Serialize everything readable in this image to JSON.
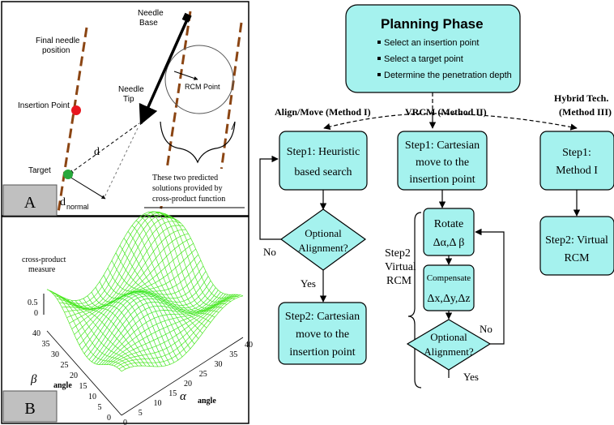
{
  "panel_a": {
    "letter": "A",
    "final_needle_1": "Final needle",
    "final_needle_2": "position",
    "needle_base_1": "Needle",
    "needle_base_2": "Base",
    "needle_tip_1": "Needle",
    "needle_tip_2": "Tip",
    "rcm_point": "RCM Point",
    "insertion_point": "Insertion Point",
    "target": "Target",
    "d_upper": "d",
    "d_lower": "d",
    "normal": "normal",
    "note_1": "These two predicted",
    "note_2": "solutions provided by",
    "note_3": "cross-product function",
    "colors": {
      "insertion_point": "#e8161e",
      "target": "#28a83c",
      "needle": "#8b4513"
    }
  },
  "panel_b": {
    "letter": "B",
    "z_label_1": "cross-product",
    "z_label_2": "measure",
    "z_ticks": [
      "0.5",
      "0"
    ],
    "beta_symbol": "β",
    "beta_word": "angle",
    "alpha_symbol": "α",
    "alpha_word": "angle",
    "beta_ticks": [
      "40",
      "35",
      "30",
      "25",
      "20",
      "15",
      "10",
      "5",
      "0"
    ],
    "alpha_ticks": [
      "0",
      "5",
      "10",
      "15",
      "20",
      "25",
      "30",
      "35",
      "40"
    ]
  },
  "flowchart": {
    "planning_title": "Planning Phase",
    "planning_items": [
      "Select an insertion point",
      "Select a target point",
      "Determine the penetration depth"
    ],
    "method1_label": "Align/Move (Method I)",
    "method2_label": "VRCM (Method II)",
    "method3_label_1": "Hybrid Tech.",
    "method3_label_2": "(Method III)",
    "m1_step1": [
      "Step1: Heuristic",
      "based search"
    ],
    "m1_diamond": [
      "Optional",
      "Alignment?"
    ],
    "m1_no": "No",
    "m1_yes": "Yes",
    "m1_step2": [
      "Step2: Cartesian",
      "move to the",
      "insertion point"
    ],
    "m2_step1": [
      "Step1: Cartesian",
      "move to the",
      "insertion point"
    ],
    "m2_step2_label": [
      "Step2",
      "Virtual",
      "RCM"
    ],
    "m2_rotate": [
      "Rotate",
      "Δα,Δ β"
    ],
    "m2_compensate": [
      "Compensate",
      "Δx,Δy,Δz"
    ],
    "m2_diamond": [
      "Optional",
      "Alignment?"
    ],
    "m2_no": "No",
    "m2_yes": "Yes",
    "m3_step1": [
      "Step1:",
      "Method I"
    ],
    "m3_step2": [
      "Step2: Virtual",
      "RCM"
    ],
    "colors": {
      "box_fill": "#a5f2ee",
      "letter_box": "#c0c0c0"
    }
  }
}
